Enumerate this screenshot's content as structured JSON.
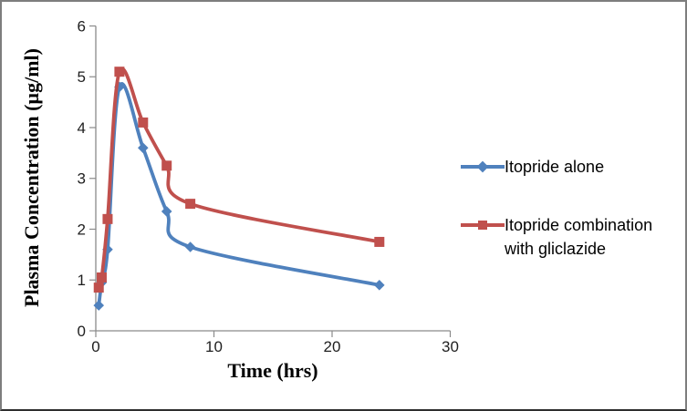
{
  "figure": {
    "background": "#ffffff",
    "border_color": "#7d7d7d"
  },
  "chart_data": {
    "type": "line",
    "title": "",
    "xlabel": "Time (hrs)",
    "ylabel": "Plasma Concentration (µg/ml)",
    "xlim": [
      0,
      30
    ],
    "ylim": [
      0,
      6
    ],
    "x_ticks": [
      0,
      10,
      20,
      30
    ],
    "y_ticks": [
      0,
      1,
      2,
      3,
      4,
      5,
      6
    ],
    "grid": false,
    "legend_position": "right",
    "axis_color": "#8a8a8a",
    "tick_label_color": "#1f1f1f",
    "x": [
      0.25,
      0.5,
      1,
      2,
      4,
      6,
      8,
      24
    ],
    "series": [
      {
        "name": "Itopride alone",
        "color": "#4F81BD",
        "marker": "diamond",
        "values": [
          0.5,
          0.95,
          1.6,
          4.8,
          3.6,
          2.35,
          1.65,
          0.9
        ]
      },
      {
        "name": "Itopride combination with gliclazide",
        "color": "#C0504D",
        "marker": "square",
        "values": [
          0.85,
          1.05,
          2.2,
          5.1,
          4.1,
          3.25,
          2.5,
          1.75
        ]
      }
    ]
  }
}
